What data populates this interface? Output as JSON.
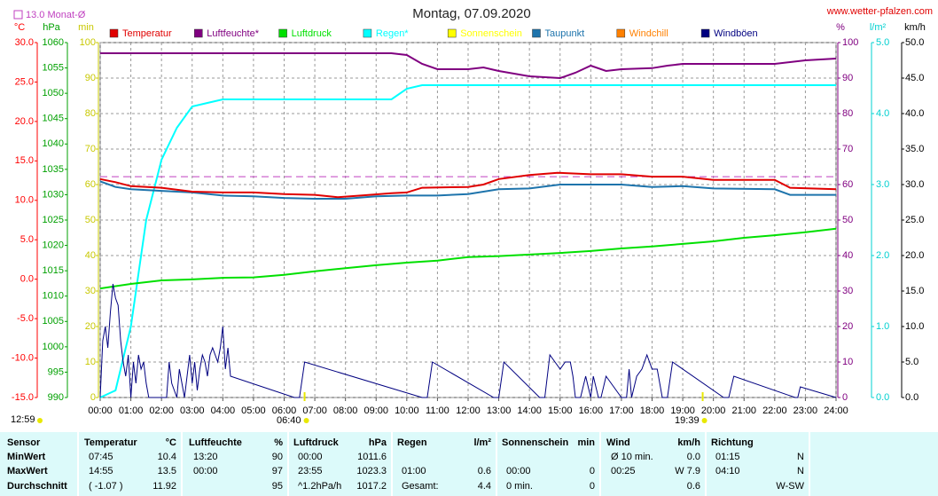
{
  "chart_data": {
    "type": "line",
    "title": "Montag, 07.09.2020",
    "source": "www.wetter-pfalzen.com",
    "monthly_avg": {
      "label": "13.0 Monat-Ø",
      "value": 13.0,
      "axis": 0,
      "color": "#c040c0"
    },
    "day_length": "12:59",
    "sunrise": "06:40",
    "sunset": "19:39",
    "grid": true,
    "grid_axis": 3,
    "categories": [
      "00:00",
      "01:00",
      "02:00",
      "03:00",
      "04:00",
      "05:00",
      "06:00",
      "07:00",
      "08:00",
      "09:00",
      "10:00",
      "11:00",
      "12:00",
      "13:00",
      "14:00",
      "15:00",
      "16:00",
      "17:00",
      "18:00",
      "19:00",
      "20:00",
      "21:00",
      "22:00",
      "23:00",
      "24:00"
    ],
    "axes": [
      {
        "label": "°C",
        "side": "left",
        "color": "#ff0000",
        "lim": [
          -15,
          30
        ],
        "ticks": [
          {
            "value": 30,
            "label": "30.0"
          },
          {
            "value": 25,
            "label": "25.0"
          },
          {
            "value": 20,
            "label": "20.0"
          },
          {
            "value": 15,
            "label": "15.0"
          },
          {
            "value": 10,
            "label": "10.0"
          },
          {
            "value": 5,
            "label": "5.0"
          },
          {
            "value": 0,
            "label": "0.0"
          },
          {
            "value": -5,
            "label": "-5.0"
          },
          {
            "value": -10,
            "label": "-10.0"
          },
          {
            "value": -15,
            "label": "-15.0"
          }
        ]
      },
      {
        "label": "hPa",
        "side": "left",
        "color": "#00a000",
        "lim": [
          990,
          1060
        ],
        "ticks": [
          1060,
          1055,
          1050,
          1045,
          1040,
          1035,
          1030,
          1025,
          1020,
          1015,
          1010,
          1005,
          1000,
          995,
          990
        ]
      },
      {
        "label": "min",
        "side": "left",
        "color": "#c8c800",
        "lim": [
          0,
          100
        ],
        "ticks": [
          100,
          90,
          80,
          70,
          60,
          50,
          40,
          30,
          20,
          10,
          0
        ]
      },
      {
        "label": "%",
        "side": "right",
        "color": "#800080",
        "lim": [
          0,
          100
        ],
        "ticks": [
          100,
          90,
          80,
          70,
          60,
          50,
          40,
          30,
          20,
          10,
          0
        ]
      },
      {
        "label": "l/m²",
        "side": "right",
        "color": "#00d0d0",
        "lim": [
          0,
          5
        ],
        "ticks": [
          {
            "value": 5,
            "label": "5.0"
          },
          {
            "value": 4,
            "label": "4.0"
          },
          {
            "value": 3,
            "label": "3.0"
          },
          {
            "value": 2,
            "label": "2.0"
          },
          {
            "value": 1,
            "label": "1.0"
          },
          {
            "value": 0,
            "label": "0.0"
          }
        ]
      },
      {
        "label": "km/h",
        "side": "right",
        "color": "#000000",
        "lim": [
          0,
          50
        ],
        "ticks": [
          {
            "value": 50,
            "label": "50.0"
          },
          {
            "value": 45,
            "label": "45.0"
          },
          {
            "value": 40,
            "label": "40.0"
          },
          {
            "value": 35,
            "label": "35.0"
          },
          {
            "value": 30,
            "label": "30.0"
          },
          {
            "value": 25,
            "label": "25.0"
          },
          {
            "value": 20,
            "label": "20.0"
          },
          {
            "value": 15,
            "label": "15.0"
          },
          {
            "value": 10,
            "label": "10.0"
          },
          {
            "value": 5,
            "label": "5.0"
          },
          {
            "value": 0,
            "label": "0.0"
          }
        ]
      }
    ],
    "series": [
      {
        "name": "Temperatur",
        "color": "#e00000",
        "axis": 0,
        "width": 2,
        "x": [
          "00:00",
          "00:30",
          "01:00",
          "02:00",
          "03:00",
          "04:00",
          "05:00",
          "06:00",
          "07:00",
          "07:45",
          "08:30",
          "09:30",
          "10:00",
          "10:30",
          "12:00",
          "12:30",
          "13:00",
          "14:00",
          "14:55",
          "16:00",
          "17:00",
          "18:00",
          "19:00",
          "20:00",
          "22:00",
          "22:30",
          "24:00"
        ],
        "values": [
          12.7,
          12.3,
          11.8,
          11.6,
          11.1,
          11.0,
          11.0,
          10.8,
          10.7,
          10.4,
          10.6,
          10.9,
          11.0,
          11.6,
          11.7,
          12.0,
          12.7,
          13.2,
          13.5,
          13.3,
          13.3,
          13.0,
          13.0,
          12.6,
          12.6,
          11.6,
          11.4
        ]
      },
      {
        "name": "Luftfeuchte*",
        "color": "#800080",
        "axis": 3,
        "width": 2,
        "x": [
          "00:00",
          "09:30",
          "10:00",
          "10:30",
          "11:00",
          "12:00",
          "12:30",
          "13:00",
          "14:00",
          "15:00",
          "15:30",
          "16:00",
          "16:30",
          "17:00",
          "18:00",
          "18:30",
          "19:00",
          "20:00",
          "21:00",
          "22:00",
          "23:00",
          "24:00"
        ],
        "values": [
          97,
          97,
          96.5,
          94,
          92.5,
          92.5,
          93,
          92,
          90.5,
          90,
          91.5,
          93.5,
          92,
          92.5,
          92.8,
          93.5,
          94,
          94,
          94,
          94,
          95,
          95.5
        ]
      },
      {
        "name": "Luftdruck",
        "color": "#00e000",
        "axis": 1,
        "width": 2,
        "x": [
          "00:00",
          "01:00",
          "02:00",
          "03:00",
          "04:00",
          "05:00",
          "06:00",
          "07:00",
          "08:00",
          "09:00",
          "10:00",
          "11:00",
          "12:00",
          "13:00",
          "14:00",
          "15:00",
          "16:00",
          "17:00",
          "18:00",
          "19:00",
          "20:00",
          "21:00",
          "22:00",
          "23:00",
          "24:00"
        ],
        "values": [
          1011.5,
          1012.4,
          1013.1,
          1013.3,
          1013.6,
          1013.7,
          1014.2,
          1014.9,
          1015.5,
          1016.1,
          1016.6,
          1017.0,
          1017.7,
          1017.9,
          1018.2,
          1018.5,
          1018.9,
          1019.4,
          1019.8,
          1020.3,
          1020.8,
          1021.5,
          1022.0,
          1022.6,
          1023.3
        ]
      },
      {
        "name": "Regen*",
        "color": "#00ffff",
        "axis": 4,
        "width": 2,
        "x": [
          "00:00",
          "00:30",
          "01:00",
          "01:30",
          "02:00",
          "02:30",
          "03:00",
          "03:30",
          "04:00",
          "09:30",
          "10:00",
          "10:30",
          "24:00"
        ],
        "values": [
          0,
          0.1,
          1.0,
          2.5,
          3.35,
          3.8,
          4.1,
          4.15,
          4.2,
          4.2,
          4.35,
          4.4,
          4.4
        ]
      },
      {
        "name": "Sonnenschein",
        "color": "#ffff00",
        "axis": 2
      },
      {
        "name": "Taupunkt",
        "color": "#1e74ac",
        "axis": 0,
        "width": 2,
        "x": [
          "00:00",
          "00:30",
          "01:00",
          "02:00",
          "03:00",
          "04:00",
          "05:00",
          "06:00",
          "07:00",
          "08:00",
          "09:00",
          "10:00",
          "11:00",
          "12:00",
          "13:00",
          "14:00",
          "15:00",
          "16:00",
          "17:00",
          "18:00",
          "19:00",
          "20:00",
          "22:00",
          "22:30",
          "24:00"
        ],
        "values": [
          12.4,
          11.7,
          11.4,
          11.2,
          11.0,
          10.6,
          10.5,
          10.3,
          10.2,
          10.2,
          10.5,
          10.6,
          10.6,
          10.8,
          11.4,
          11.5,
          12.0,
          12.0,
          12.0,
          11.7,
          11.8,
          11.5,
          11.4,
          10.7,
          10.7
        ]
      },
      {
        "name": "Windchill",
        "color": "#ff8000",
        "axis": 0
      },
      {
        "name": "Windböen",
        "color": "#000080",
        "axis": 5,
        "width": 1,
        "x": [
          "00:00",
          "00:05",
          "00:10",
          "00:15",
          "00:20",
          "00:25",
          "00:30",
          "00:35",
          "00:40",
          "00:45",
          "00:50",
          "00:55",
          "01:00",
          "01:05",
          "01:10",
          "01:15",
          "01:20",
          "01:25",
          "01:30",
          "01:35",
          "02:10",
          "02:15",
          "02:20",
          "02:30",
          "02:35",
          "02:45",
          "02:50",
          "02:55",
          "03:00",
          "03:05",
          "03:10",
          "03:15",
          "03:20",
          "03:25",
          "03:30",
          "03:35",
          "03:40",
          "03:50",
          "03:55",
          "04:00",
          "04:05",
          "04:10",
          "04:15",
          "06:20",
          "06:30",
          "06:40",
          "10:30",
          "10:40",
          "10:50",
          "12:50",
          "13:00",
          "13:10",
          "14:20",
          "14:30",
          "14:40",
          "14:50",
          "15:00",
          "15:10",
          "15:20",
          "15:25",
          "15:30",
          "15:40",
          "15:50",
          "16:00",
          "16:05",
          "16:15",
          "16:20",
          "16:30",
          "17:00",
          "17:10",
          "17:15",
          "17:20",
          "17:30",
          "17:40",
          "17:45",
          "17:50",
          "18:00",
          "18:10",
          "18:20",
          "18:30",
          "18:40",
          "20:20",
          "20:30",
          "20:40",
          "22:40",
          "22:45",
          "22:50",
          "24:00"
        ],
        "values": [
          0,
          8,
          10,
          7,
          12,
          16,
          14,
          13,
          8,
          5,
          3,
          6,
          0,
          5,
          2,
          6,
          4,
          5,
          2,
          0,
          0,
          5,
          2,
          0,
          4,
          0,
          3,
          6,
          2,
          5,
          1,
          4,
          6,
          5,
          3,
          6,
          7,
          5,
          7,
          10,
          4,
          7,
          3,
          0,
          0,
          5,
          0,
          0,
          5,
          0,
          0,
          5,
          0,
          0,
          6,
          5,
          4,
          5,
          5,
          3,
          0,
          0,
          3,
          0,
          3,
          0,
          0,
          3,
          0,
          0,
          4,
          0,
          3,
          4,
          5,
          6,
          4,
          4,
          0,
          0,
          5,
          0,
          0,
          3,
          0,
          0,
          1.5,
          0
        ]
      }
    ]
  },
  "table": {
    "columns": [
      {
        "header": "Sensor"
      },
      {
        "header": "Temperatur",
        "unit": "°C"
      },
      {
        "header": "Luftfeuchte",
        "unit": "%"
      },
      {
        "header": "Luftdruck",
        "unit": "hPa"
      },
      {
        "header": "Regen",
        "unit": "l/m²"
      },
      {
        "header": "Sonnenschein",
        "unit": "min"
      },
      {
        "header": "Wind",
        "unit": "km/h"
      },
      {
        "header": "Richtung"
      }
    ],
    "rows": [
      {
        "label": "MinWert",
        "cells": [
          [
            "07:45",
            "10.4"
          ],
          [
            "13:20",
            "90"
          ],
          [
            "00:00",
            "1011.6"
          ],
          [
            null,
            null
          ],
          [
            null,
            null
          ],
          [
            "Ø 10 min.",
            "0.0"
          ],
          [
            "01:15",
            "N"
          ]
        ]
      },
      {
        "label": "MaxWert",
        "cells": [
          [
            "14:55",
            "13.5"
          ],
          [
            "00:00",
            "97"
          ],
          [
            "23:55",
            "1023.3"
          ],
          [
            "01:00",
            "0.6"
          ],
          [
            "00:00",
            "0"
          ],
          [
            "00:25",
            "W 7.9"
          ],
          [
            "04:10",
            "N"
          ]
        ]
      },
      {
        "label": "Durchschnitt",
        "cells": [
          [
            "( -1.07 )",
            "11.92"
          ],
          [
            null,
            "95"
          ],
          [
            "^1.2hPa/h",
            "1017.2"
          ],
          [
            "Gesamt:",
            "4.4"
          ],
          [
            "0 min.",
            "0"
          ],
          [
            null,
            "0.6"
          ],
          [
            null,
            "W-SW"
          ]
        ]
      }
    ]
  }
}
